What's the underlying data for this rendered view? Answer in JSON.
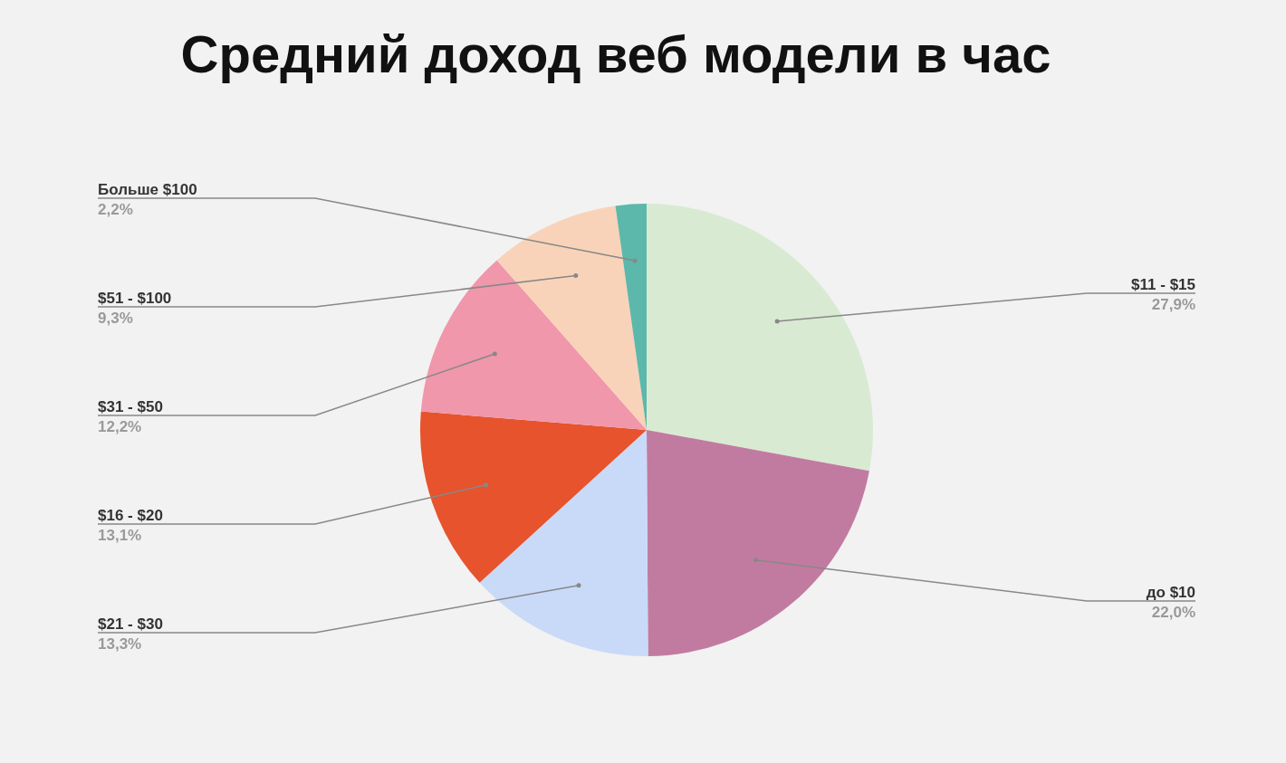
{
  "chart_data": {
    "type": "pie",
    "title": "Средний доход веб модели в час",
    "categories": [
      "$11 - $15",
      "до $10",
      "$21 - $30",
      "$16 - $20",
      "$31 - $50",
      "$51 - $100",
      "Больше $100"
    ],
    "values": [
      27.9,
      22.0,
      13.3,
      13.1,
      12.2,
      9.3,
      2.2
    ],
    "value_labels": [
      "27,9%",
      "22,0%",
      "13,3%",
      "13,1%",
      "12,2%",
      "9,3%",
      "2,2%"
    ],
    "colors": [
      "#d9ead3",
      "#c27ba0",
      "#c9daf8",
      "#e6532d",
      "#f097ab",
      "#f9d3b9",
      "#5cb8aa"
    ]
  }
}
